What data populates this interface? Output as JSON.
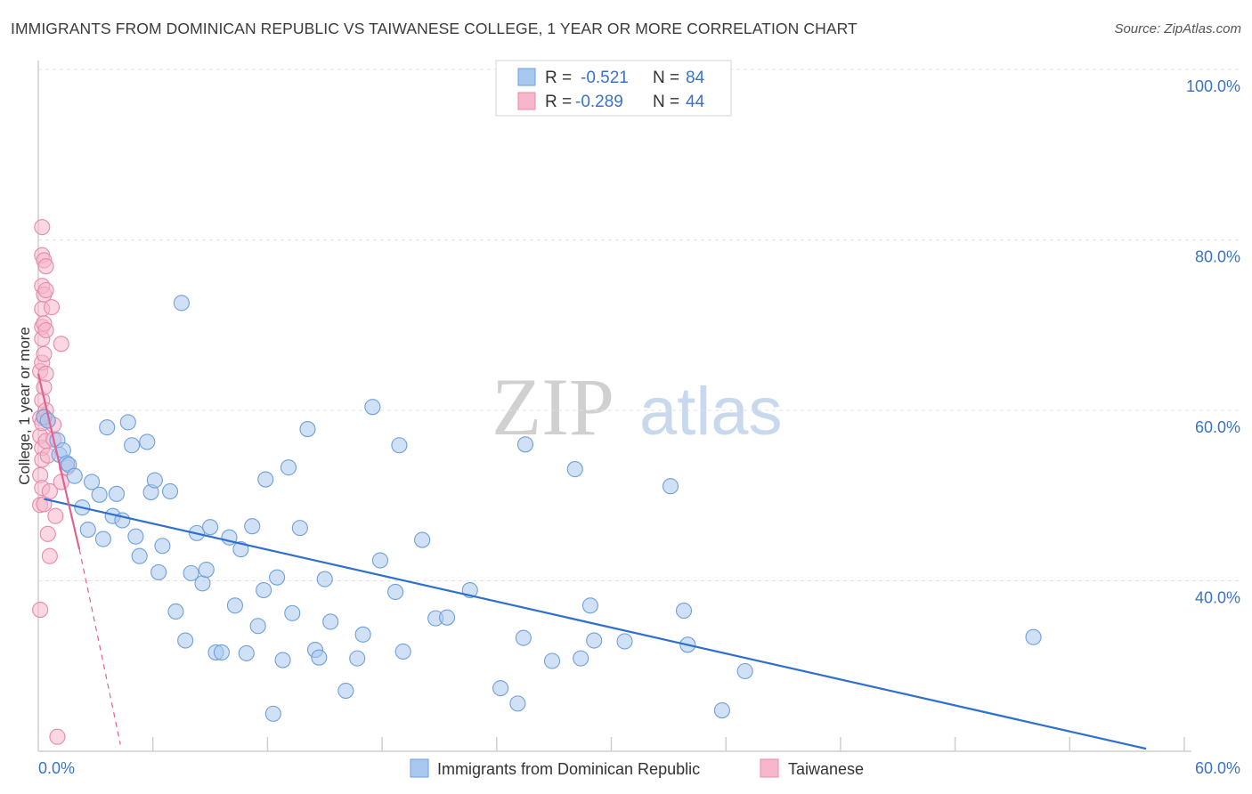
{
  "title": "IMMIGRANTS FROM DOMINICAN REPUBLIC VS TAIWANESE COLLEGE, 1 YEAR OR MORE CORRELATION CHART",
  "source": "Source: ZipAtlas.com",
  "watermark": {
    "zip": "ZIP",
    "atlas": "atlas"
  },
  "colors": {
    "blue_fill": "#a9c8ef",
    "blue_stroke": "#6f9fdc",
    "blue_line": "#2f6fce",
    "pink_fill": "#f6b6cb",
    "pink_stroke": "#e889a9",
    "pink_line": "#e0628f",
    "grid": "#e2e2e2",
    "axis_label": "#3a73c6"
  },
  "legend": {
    "rows": [
      {
        "r_label": "R = ",
        "r_value": "-0.521",
        "n_label": "N = ",
        "n_value": "84",
        "series": "blue"
      },
      {
        "r_label": "R = ",
        "r_value": "-0.289",
        "n_label": "N = ",
        "n_value": "44",
        "series": "pink"
      }
    ]
  },
  "bottom_legend": [
    {
      "label": "Immigrants from Dominican Republic",
      "series": "blue"
    },
    {
      "label": "Taiwanese",
      "series": "pink"
    }
  ],
  "chart_data": {
    "type": "scatter",
    "title": "IMMIGRANTS FROM DOMINICAN REPUBLIC VS TAIWANESE COLLEGE, 1 YEAR OR MORE CORRELATION CHART",
    "xlabel": "",
    "ylabel": "College, 1 year or more",
    "xlim": [
      0,
      60
    ],
    "ylim": [
      20,
      100
    ],
    "x_tick_labels": [
      "0.0%",
      "60.0%"
    ],
    "y_ticks": [
      40,
      60,
      80,
      100
    ],
    "y_tick_labels": [
      "40.0%",
      "60.0%",
      "80.0%",
      "100.0%"
    ],
    "series": [
      {
        "name": "Immigrants from Dominican Republic",
        "color": "blue",
        "R": -0.521,
        "N": 84,
        "trend": {
          "x": [
            0.3,
            58
          ],
          "y": [
            49.6,
            20.3
          ]
        },
        "points": [
          [
            0.3,
            59.2
          ],
          [
            0.5,
            58.8
          ],
          [
            1.0,
            56.5
          ],
          [
            1.1,
            54.8
          ],
          [
            1.3,
            55.3
          ],
          [
            1.5,
            53.8
          ],
          [
            1.6,
            53.6
          ],
          [
            1.9,
            52.3
          ],
          [
            2.3,
            48.6
          ],
          [
            2.6,
            46.0
          ],
          [
            2.8,
            51.6
          ],
          [
            3.2,
            50.1
          ],
          [
            3.4,
            44.9
          ],
          [
            3.6,
            58.0
          ],
          [
            3.9,
            47.6
          ],
          [
            4.1,
            50.2
          ],
          [
            4.4,
            47.1
          ],
          [
            4.7,
            58.6
          ],
          [
            4.9,
            55.9
          ],
          [
            5.1,
            45.2
          ],
          [
            5.3,
            42.9
          ],
          [
            5.7,
            56.3
          ],
          [
            5.9,
            50.4
          ],
          [
            6.1,
            51.8
          ],
          [
            6.3,
            41.0
          ],
          [
            6.5,
            44.1
          ],
          [
            6.9,
            50.5
          ],
          [
            7.2,
            36.4
          ],
          [
            7.5,
            72.6
          ],
          [
            7.7,
            33.0
          ],
          [
            8.0,
            40.9
          ],
          [
            8.3,
            45.6
          ],
          [
            8.6,
            39.7
          ],
          [
            8.8,
            41.3
          ],
          [
            9.0,
            46.3
          ],
          [
            9.3,
            31.6
          ],
          [
            9.6,
            31.6
          ],
          [
            10.0,
            45.1
          ],
          [
            10.3,
            37.1
          ],
          [
            10.6,
            43.7
          ],
          [
            10.9,
            31.5
          ],
          [
            11.2,
            46.4
          ],
          [
            11.5,
            34.7
          ],
          [
            11.8,
            38.9
          ],
          [
            11.9,
            51.9
          ],
          [
            12.3,
            24.4
          ],
          [
            12.5,
            40.4
          ],
          [
            12.8,
            30.7
          ],
          [
            13.1,
            53.3
          ],
          [
            13.3,
            36.2
          ],
          [
            13.7,
            46.2
          ],
          [
            14.1,
            57.8
          ],
          [
            14.5,
            31.9
          ],
          [
            14.7,
            31.0
          ],
          [
            15.0,
            40.2
          ],
          [
            15.3,
            35.2
          ],
          [
            16.1,
            27.1
          ],
          [
            16.7,
            30.9
          ],
          [
            17.0,
            33.7
          ],
          [
            17.5,
            60.4
          ],
          [
            17.9,
            42.4
          ],
          [
            18.7,
            38.7
          ],
          [
            18.9,
            55.9
          ],
          [
            19.1,
            31.7
          ],
          [
            20.1,
            44.8
          ],
          [
            20.8,
            35.6
          ],
          [
            21.4,
            35.7
          ],
          [
            22.6,
            38.9
          ],
          [
            24.2,
            27.4
          ],
          [
            25.1,
            25.6
          ],
          [
            25.4,
            33.3
          ],
          [
            25.5,
            56.0
          ],
          [
            26.9,
            30.6
          ],
          [
            28.1,
            53.1
          ],
          [
            28.4,
            30.9
          ],
          [
            28.9,
            37.1
          ],
          [
            29.1,
            33.0
          ],
          [
            30.7,
            32.9
          ],
          [
            33.1,
            51.1
          ],
          [
            33.8,
            36.5
          ],
          [
            34.0,
            32.5
          ],
          [
            35.8,
            24.8
          ],
          [
            37.0,
            29.4
          ],
          [
            52.1,
            33.4
          ]
        ]
      },
      {
        "name": "Taiwanese",
        "color": "pink",
        "R": -0.289,
        "N": 44,
        "trend": {
          "x": [
            0.0,
            2.15
          ],
          "y": [
            64.3,
            43.7
          ]
        },
        "trend_dashed": {
          "x": [
            2.15,
            4.3
          ],
          "y": [
            43.7,
            20.8
          ]
        },
        "points": [
          [
            0.1,
            59.1
          ],
          [
            0.1,
            57.0
          ],
          [
            0.1,
            52.4
          ],
          [
            0.1,
            48.9
          ],
          [
            0.1,
            36.6
          ],
          [
            0.1,
            64.6
          ],
          [
            0.2,
            81.5
          ],
          [
            0.2,
            78.2
          ],
          [
            0.2,
            74.6
          ],
          [
            0.2,
            71.9
          ],
          [
            0.2,
            69.8
          ],
          [
            0.2,
            68.4
          ],
          [
            0.2,
            65.6
          ],
          [
            0.2,
            61.2
          ],
          [
            0.2,
            58.5
          ],
          [
            0.2,
            55.6
          ],
          [
            0.2,
            54.2
          ],
          [
            0.2,
            50.9
          ],
          [
            0.3,
            49.0
          ],
          [
            0.3,
            77.6
          ],
          [
            0.3,
            73.6
          ],
          [
            0.3,
            70.2
          ],
          [
            0.3,
            66.6
          ],
          [
            0.3,
            62.7
          ],
          [
            0.3,
            59.3
          ],
          [
            0.4,
            56.4
          ],
          [
            0.4,
            76.9
          ],
          [
            0.4,
            74.1
          ],
          [
            0.4,
            69.4
          ],
          [
            0.4,
            64.3
          ],
          [
            0.4,
            60.0
          ],
          [
            0.5,
            58.8
          ],
          [
            0.5,
            54.7
          ],
          [
            0.5,
            45.5
          ],
          [
            0.6,
            42.9
          ],
          [
            0.6,
            50.5
          ],
          [
            0.7,
            72.1
          ],
          [
            0.8,
            58.3
          ],
          [
            0.8,
            56.6
          ],
          [
            0.9,
            47.6
          ],
          [
            1.0,
            21.7
          ],
          [
            1.2,
            67.8
          ],
          [
            1.2,
            51.6
          ],
          [
            1.5,
            53.3
          ]
        ]
      }
    ]
  }
}
